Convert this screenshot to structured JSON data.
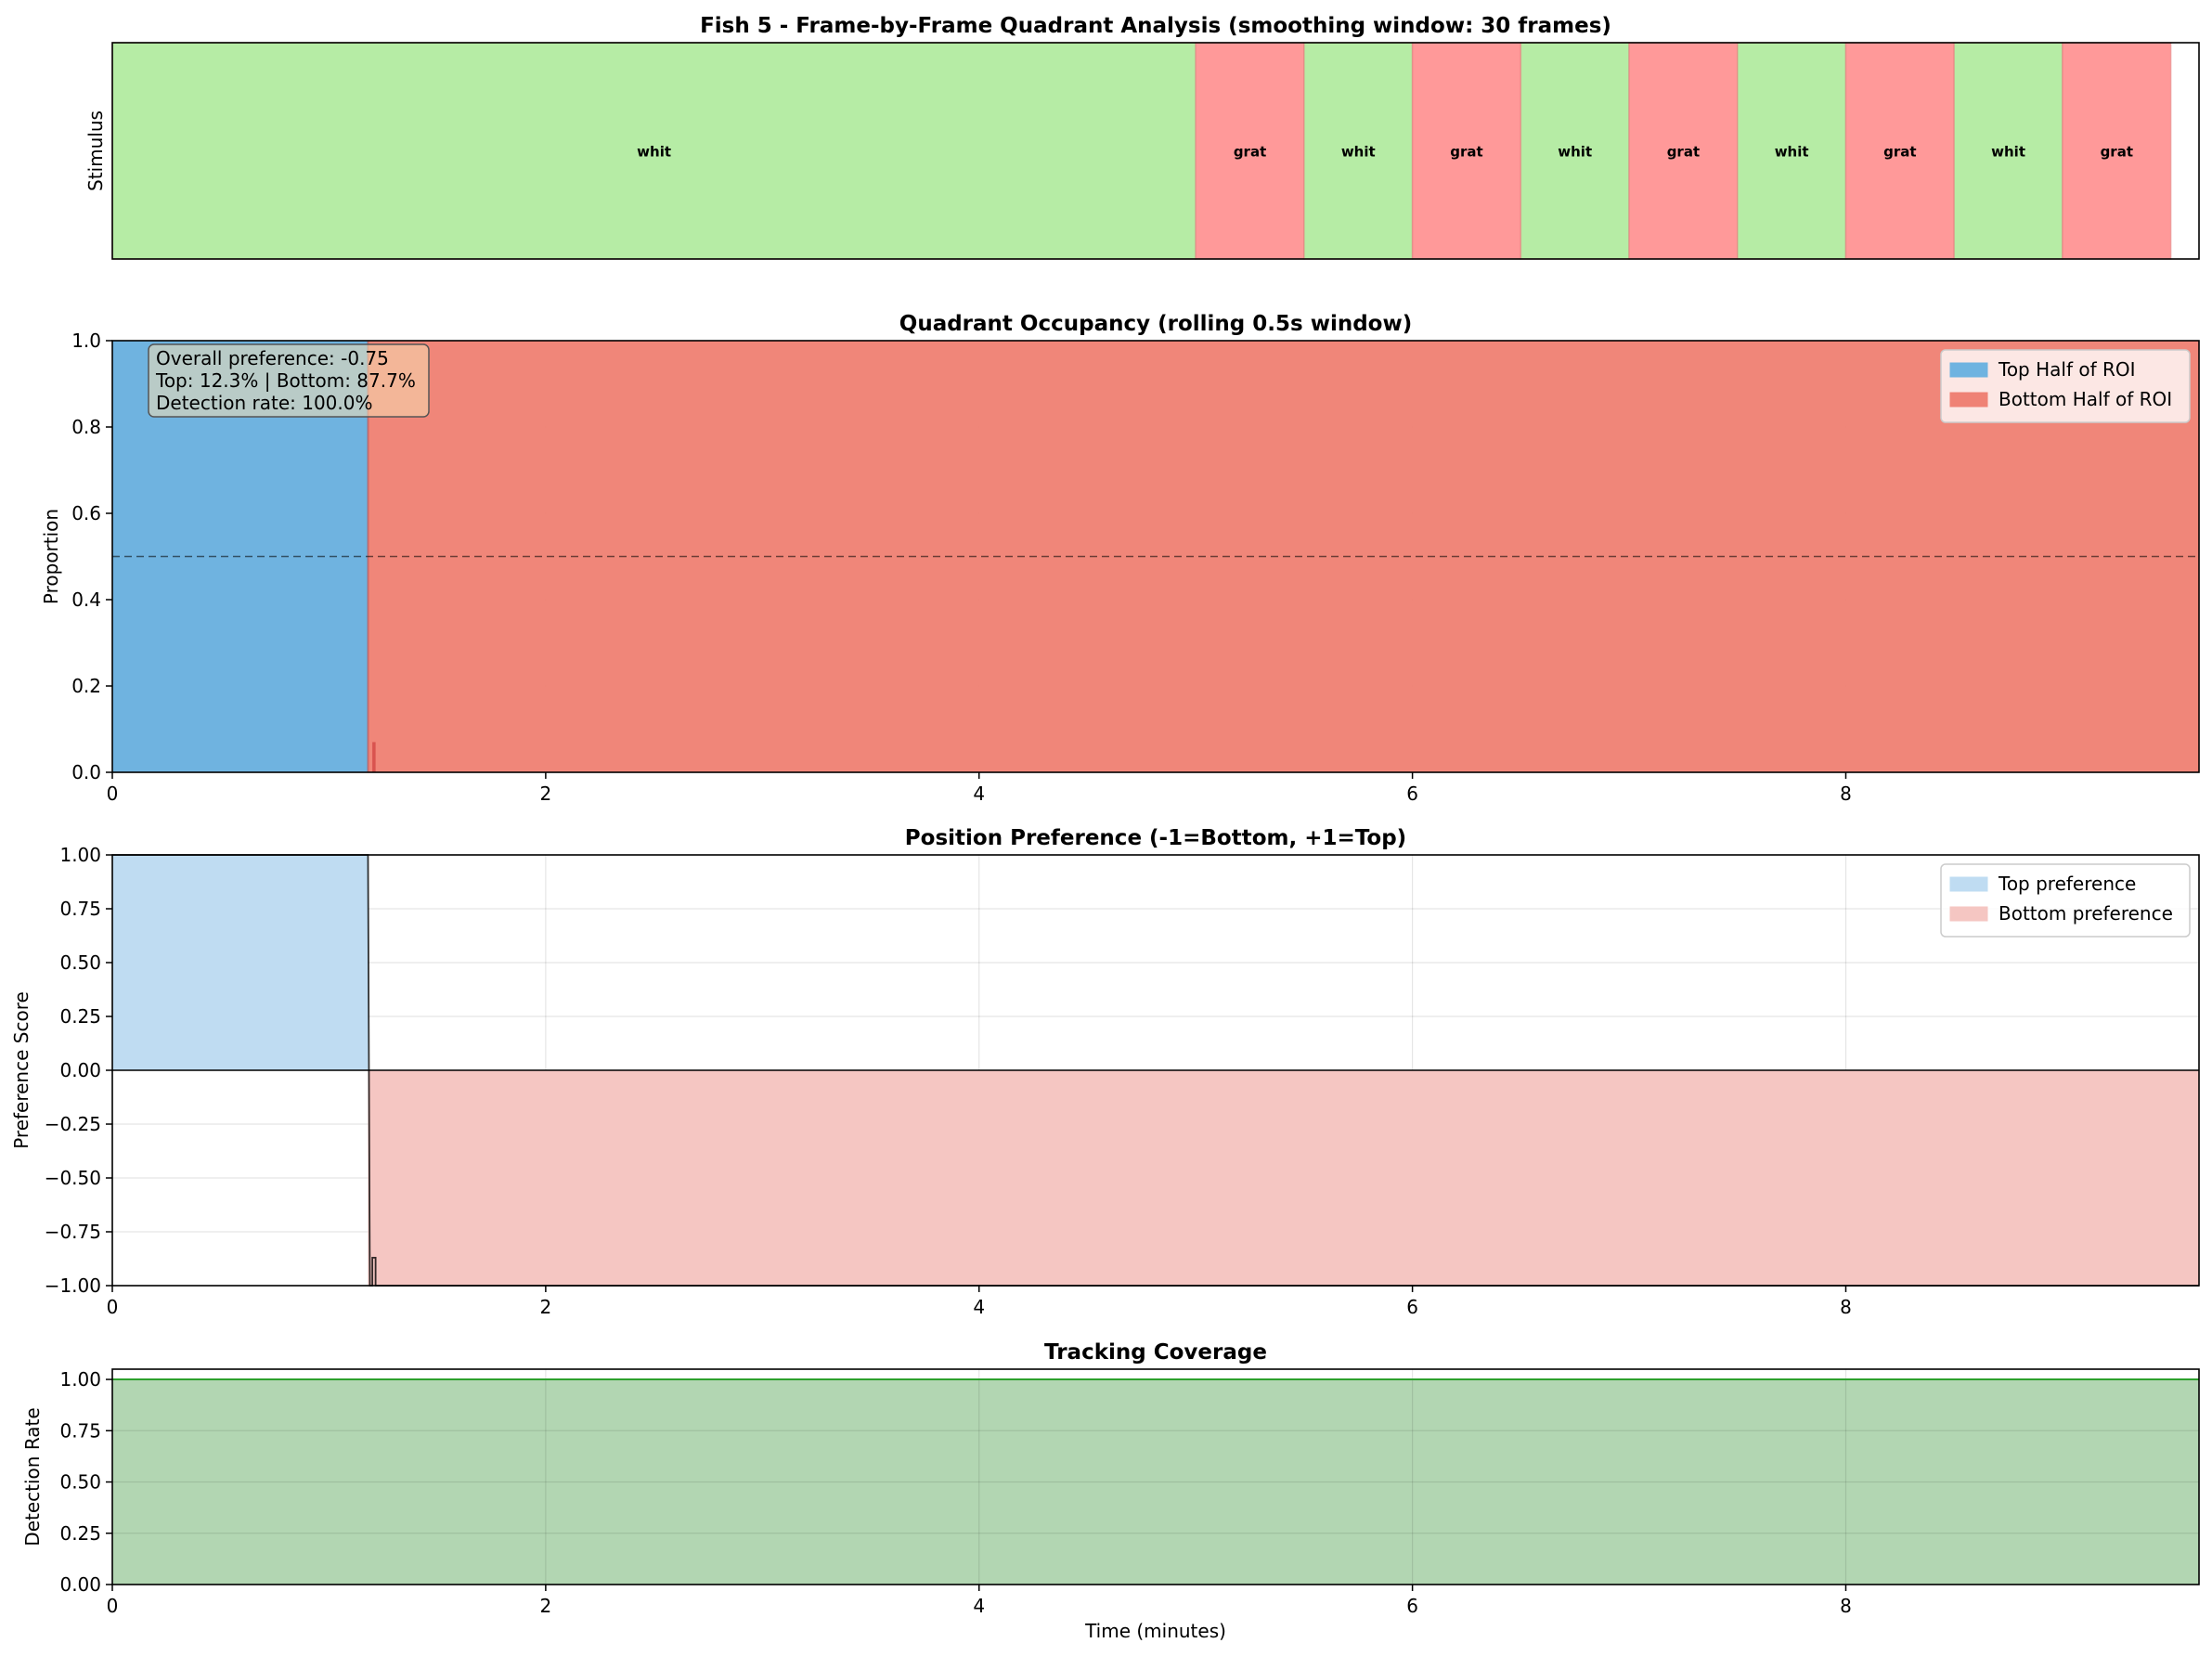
{
  "chart_data": [
    {
      "type": "area",
      "panel": "stimulus",
      "title": "Fish 5 - Frame-by-Frame Quadrant Analysis (smoothing window: 30 frames)",
      "ylabel": "Stimulus",
      "xlim": [
        0,
        9.63
      ],
      "colors": {
        "whit": "#b6eca5",
        "grat": "#ff9999",
        "edge": "#e07b7b"
      },
      "segments": [
        {
          "label": "whit",
          "start": 0.0,
          "end": 5.0
        },
        {
          "label": "grat",
          "start": 5.0,
          "end": 5.5
        },
        {
          "label": "whit",
          "start": 5.5,
          "end": 6.0
        },
        {
          "label": "grat",
          "start": 6.0,
          "end": 6.5
        },
        {
          "label": "whit",
          "start": 6.5,
          "end": 7.0
        },
        {
          "label": "grat",
          "start": 7.0,
          "end": 7.5
        },
        {
          "label": "whit",
          "start": 7.5,
          "end": 8.0
        },
        {
          "label": "grat",
          "start": 8.0,
          "end": 8.5
        },
        {
          "label": "whit",
          "start": 8.5,
          "end": 9.0
        },
        {
          "label": "grat",
          "start": 9.0,
          "end": 9.5
        }
      ]
    },
    {
      "type": "area",
      "panel": "occupancy",
      "title": "Quadrant Occupancy (rolling 0.5s window)",
      "ylabel": "Proportion",
      "xlim": [
        0,
        9.63
      ],
      "ylim": [
        0,
        1
      ],
      "yticks": [
        0.0,
        0.2,
        0.4,
        0.6,
        0.8,
        1.0
      ],
      "ytick_labels": [
        "0.0",
        "0.2",
        "0.4",
        "0.6",
        "0.8",
        "1.0"
      ],
      "xticks": [
        0,
        2,
        4,
        6,
        8
      ],
      "xtick_labels": [
        "0",
        "2",
        "4",
        "6",
        "8"
      ],
      "reference_line": 0.5,
      "switch_time": 1.18,
      "blip": {
        "start": 1.2,
        "end": 1.215,
        "top_value": 0.07
      },
      "series": [
        {
          "name": "Top Half of ROI",
          "color": "#6fb3e0",
          "values_desc": "1.0 before switch, 0 after"
        },
        {
          "name": "Bottom Half of ROI",
          "color": "#ef8275",
          "values_desc": "0 before switch, 1.0 after"
        }
      ],
      "legend_position": "top-right",
      "stats_box": {
        "line1": "Overall preference: -0.75",
        "line2": "Top: 12.3% | Bottom: 87.7%",
        "line3": "Detection rate: 100.0%"
      }
    },
    {
      "type": "area",
      "panel": "preference",
      "title": "Position Preference (-1=Bottom, +1=Top)",
      "ylabel": "Preference Score",
      "xlim": [
        0,
        9.63
      ],
      "ylim": [
        -1,
        1
      ],
      "yticks": [
        -1.0,
        -0.75,
        -0.5,
        -0.25,
        0.0,
        0.25,
        0.5,
        0.75,
        1.0
      ],
      "ytick_labels": [
        "−1.00",
        "−0.75",
        "−0.50",
        "−0.25",
        "0.00",
        "0.25",
        "0.50",
        "0.75",
        "1.00"
      ],
      "xticks": [
        0,
        2,
        4,
        6,
        8
      ],
      "xtick_labels": [
        "0",
        "2",
        "4",
        "6",
        "8"
      ],
      "switch_time": 1.18,
      "blip": {
        "start": 1.2,
        "end": 1.215,
        "value": -0.87
      },
      "series": [
        {
          "name": "Top preference",
          "color": "#bfdcf2"
        },
        {
          "name": "Bottom preference",
          "color": "#f5c6c2"
        }
      ],
      "legend_position": "top-right"
    },
    {
      "type": "area",
      "panel": "coverage",
      "title": "Tracking Coverage",
      "ylabel": "Detection Rate",
      "xlabel": "Time (minutes)",
      "xlim": [
        0,
        9.63
      ],
      "ylim": [
        0,
        1.05
      ],
      "yticks": [
        0.0,
        0.25,
        0.5,
        0.75,
        1.0
      ],
      "ytick_labels": [
        "0.00",
        "0.25",
        "0.50",
        "0.75",
        "1.00"
      ],
      "xticks": [
        0,
        2,
        4,
        6,
        8
      ],
      "xtick_labels": [
        "0",
        "2",
        "4",
        "6",
        "8"
      ],
      "value": 1.0,
      "color": "#b2d6b2",
      "line_color": "#2ca02c"
    }
  ]
}
